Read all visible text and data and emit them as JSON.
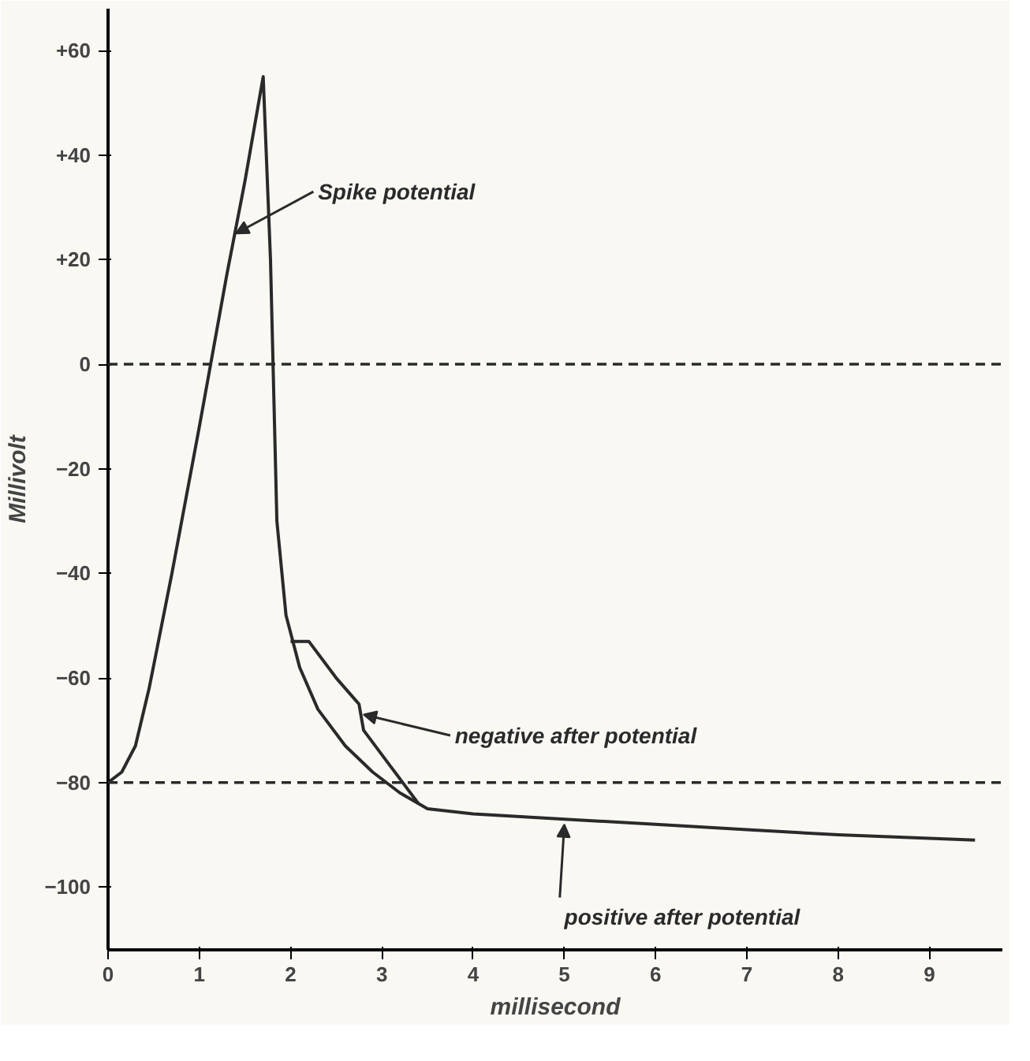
{
  "chart_data": {
    "type": "line",
    "xlabel": "millisecond",
    "ylabel": "Millivolt",
    "xlim": [
      0,
      9.8
    ],
    "ylim": [
      -112,
      68
    ],
    "xticks": [
      0,
      1,
      2,
      3,
      4,
      5,
      6,
      7,
      8,
      9
    ],
    "yticks": [
      {
        "value": 60,
        "label": "+60"
      },
      {
        "value": 40,
        "label": "+40"
      },
      {
        "value": 20,
        "label": "+20"
      },
      0,
      -20,
      -40,
      -60,
      -80,
      -100
    ],
    "grid": false,
    "marker": "none",
    "line_style": "solid",
    "series": [
      {
        "color": "#2a2a2a",
        "x": [
          0,
          0.15,
          0.3,
          0.45,
          0.7,
          1.0,
          1.3,
          1.5,
          1.7,
          1.78,
          1.85,
          1.95,
          2.1,
          2.3,
          2.6,
          2.9,
          3.2,
          3.5,
          4,
          5,
          6,
          7,
          8,
          9.5
        ],
        "values": [
          -80,
          -78,
          -73,
          -62,
          -40,
          -12,
          17,
          35,
          55,
          20,
          -30,
          -48,
          -58,
          -66,
          -73,
          -78,
          -82,
          -85,
          -86,
          -87,
          -88,
          -89,
          -90,
          -91
        ]
      },
      {
        "color": "#2a2a2a",
        "x": [
          2.0,
          2.2,
          2.5,
          2.7,
          2.75,
          2.8,
          3.1,
          3.4
        ],
        "values": [
          -53,
          -53,
          -60,
          -64,
          -65,
          -70,
          -77,
          -84
        ]
      }
    ],
    "ref_lines": [
      {
        "axis": "y",
        "value": 0,
        "line_style": "dashed",
        "color": "#2a2a2a"
      },
      {
        "axis": "y",
        "value": -80,
        "line_style": "dashed",
        "color": "#2a2a2a"
      }
    ],
    "annotations": [
      {
        "text": "Spike potential",
        "x": 1.4,
        "y": 25
      },
      {
        "text": "negative after potential",
        "x": 2.8,
        "y": -67
      },
      {
        "text": "positive after potential",
        "x": 5,
        "y": -88
      }
    ]
  }
}
